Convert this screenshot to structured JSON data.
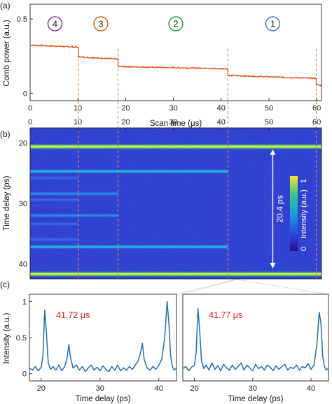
{
  "chart_data": [
    {
      "panel": "(a)",
      "type": "line",
      "xlabel": "Scan time (μs)",
      "ylabel": "Comb power (a.u.)",
      "xlim": [
        0,
        61
      ],
      "ylim": [
        -0.05,
        0.6
      ],
      "xticks": [
        "0",
        "10",
        "20",
        "30",
        "40",
        "50",
        "60"
      ],
      "yticks": [
        "0",
        "0.5"
      ],
      "color": "#e2561d",
      "segments": [
        {
          "x": [
            0,
            10.0
          ],
          "y": [
            0.325,
            0.31
          ]
        },
        {
          "x": [
            10.2,
            18.3
          ],
          "y": [
            0.245,
            0.23
          ]
        },
        {
          "x": [
            18.5,
            41.3
          ],
          "y": [
            0.18,
            0.165
          ]
        },
        {
          "x": [
            41.5,
            59.8
          ],
          "y": [
            0.12,
            0.1
          ]
        },
        {
          "x": [
            60.0,
            61.0
          ],
          "y": [
            0.06,
            0.05
          ]
        }
      ],
      "steps": [
        {
          "x": 10.1,
          "y_from": 0.31,
          "y_to": 0.245
        },
        {
          "x": 18.4,
          "y_from": 0.23,
          "y_to": 0.18
        },
        {
          "x": 41.4,
          "y_from": 0.165,
          "y_to": 0.12
        },
        {
          "x": 59.9,
          "y_from": 0.1,
          "y_to": 0.06
        }
      ],
      "state_markers": [
        {
          "label": "4",
          "x": 5.2,
          "color": "#7b3294"
        },
        {
          "label": "3",
          "x": 14.8,
          "color": "#d95f02"
        },
        {
          "label": "2",
          "x": 30.5,
          "color": "#1b9e3b"
        },
        {
          "label": "1",
          "x": 50.8,
          "color": "#3a78c2"
        }
      ],
      "transition_lines_x": [
        10.1,
        18.4,
        41.4,
        59.9
      ]
    },
    {
      "panel": "(b)",
      "type": "heatmap",
      "xlabel": "",
      "ylabel": "Time delay (ps)",
      "xlim": [
        0,
        61
      ],
      "ylim": [
        17.5,
        42.5
      ],
      "xticks": [
        "0",
        "10",
        "20",
        "30",
        "40",
        "50",
        "60"
      ],
      "yticks": [
        "20",
        "30",
        "40"
      ],
      "colorbar": {
        "label": "Intensity (a.u.)",
        "ticks": [
          "0",
          "1"
        ]
      },
      "bands": [
        {
          "y": 20.6,
          "x": [
            0,
            61
          ],
          "intensity": 0.95
        },
        {
          "y": 41.7,
          "x": [
            0,
            61
          ],
          "intensity": 0.95
        },
        {
          "y": 24.7,
          "x": [
            0,
            41.4
          ],
          "intensity": 0.45
        },
        {
          "y": 37.2,
          "x": [
            0,
            41.4
          ],
          "intensity": 0.45
        },
        {
          "y": 28.4,
          "x": [
            0,
            18.4
          ],
          "intensity": 0.35
        },
        {
          "y": 32.0,
          "x": [
            0,
            18.4
          ],
          "intensity": 0.35
        },
        {
          "y": 25.8,
          "x": [
            0,
            10.1
          ],
          "intensity": 0.3
        },
        {
          "y": 29.4,
          "x": [
            0,
            10.1
          ],
          "intensity": 0.28
        },
        {
          "y": 33.4,
          "x": [
            0,
            10.1
          ],
          "intensity": 0.28
        },
        {
          "y": 36.0,
          "x": [
            0,
            10.1
          ],
          "intensity": 0.28
        }
      ],
      "annotation": {
        "text": "20.4 ps",
        "x": 50.8,
        "y_from": 20.6,
        "y_to": 41.0
      }
    },
    {
      "panel": "(c) left",
      "type": "line",
      "xlabel": "Time delay (ps)",
      "ylabel": "Intensity (a.u.)",
      "title": "41.72 μs",
      "xlim": [
        18,
        43
      ],
      "ylim": [
        -0.1,
        1.1
      ],
      "xticks": [
        "20",
        "30",
        "40"
      ],
      "yticks": [
        "0",
        "0.5",
        "1"
      ],
      "color": "#1f6fb4",
      "x": [
        18.0,
        18.5,
        19.0,
        19.5,
        20.0,
        20.3,
        20.6,
        20.9,
        21.2,
        21.6,
        22.0,
        22.5,
        23.0,
        23.5,
        24.0,
        24.4,
        24.7,
        25.0,
        25.4,
        26.0,
        26.5,
        27.0,
        27.5,
        28.0,
        28.5,
        29.0,
        29.5,
        30.0,
        30.5,
        31.0,
        31.5,
        32.0,
        32.5,
        33.0,
        33.5,
        34.0,
        34.5,
        35.0,
        35.5,
        36.0,
        36.5,
        36.9,
        37.2,
        37.5,
        38.0,
        38.5,
        39.0,
        39.5,
        40.0,
        40.5,
        41.0,
        41.4,
        41.7,
        42.0,
        42.3,
        42.6,
        43.0
      ],
      "y": [
        0.08,
        0.05,
        0.1,
        0.04,
        0.09,
        0.25,
        0.88,
        0.55,
        0.15,
        0.06,
        0.1,
        0.05,
        0.12,
        0.04,
        0.1,
        0.22,
        0.4,
        0.22,
        0.08,
        0.12,
        0.05,
        0.1,
        0.03,
        0.08,
        0.12,
        0.05,
        0.09,
        0.04,
        0.11,
        0.06,
        0.03,
        0.1,
        0.05,
        0.12,
        0.04,
        0.08,
        0.05,
        0.1,
        0.06,
        0.12,
        0.18,
        0.3,
        0.42,
        0.2,
        0.08,
        0.05,
        0.1,
        0.06,
        0.12,
        0.2,
        0.5,
        1.0,
        0.7,
        0.25,
        0.1,
        0.05,
        0.08
      ]
    },
    {
      "panel": "(c) right",
      "type": "line",
      "xlabel": "Time delay (ps)",
      "ylabel": "",
      "title": "41.77 μs",
      "xlim": [
        18,
        43
      ],
      "ylim": [
        -0.1,
        1.1
      ],
      "xticks": [
        "20",
        "30",
        "40"
      ],
      "yticks": [],
      "color": "#1f6fb4",
      "x": [
        18.0,
        18.5,
        19.0,
        19.5,
        20.0,
        20.3,
        20.6,
        20.9,
        21.2,
        21.6,
        22.0,
        22.5,
        23.0,
        23.5,
        24.0,
        24.5,
        25.0,
        25.5,
        26.0,
        26.5,
        27.0,
        27.5,
        28.0,
        28.5,
        29.0,
        29.5,
        30.0,
        30.5,
        31.0,
        31.5,
        32.0,
        32.5,
        33.0,
        33.5,
        34.0,
        34.5,
        35.0,
        35.5,
        36.0,
        36.5,
        37.0,
        37.5,
        38.0,
        38.5,
        39.0,
        39.5,
        40.0,
        40.5,
        41.0,
        41.4,
        41.7,
        42.0,
        42.3,
        42.6,
        43.0
      ],
      "y": [
        0.07,
        0.1,
        0.04,
        0.09,
        0.12,
        0.3,
        0.9,
        0.6,
        0.18,
        0.07,
        0.12,
        0.05,
        0.15,
        0.06,
        0.11,
        0.04,
        0.13,
        0.08,
        0.05,
        0.12,
        0.06,
        0.1,
        0.15,
        0.05,
        0.12,
        0.08,
        0.04,
        0.13,
        0.07,
        0.1,
        0.05,
        0.12,
        0.09,
        0.04,
        0.11,
        0.06,
        0.1,
        0.13,
        0.05,
        0.09,
        0.07,
        0.12,
        0.05,
        0.1,
        0.08,
        0.14,
        0.06,
        0.12,
        0.4,
        0.85,
        0.7,
        0.25,
        0.1,
        0.05,
        0.08
      ]
    }
  ],
  "panel_labels": [
    "(a)",
    "(b)",
    "(c)"
  ]
}
